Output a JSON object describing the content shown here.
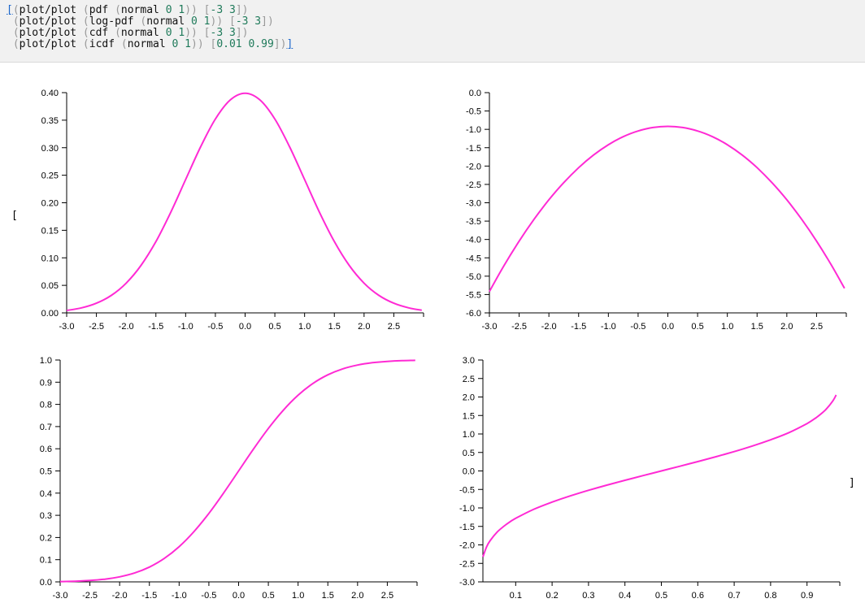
{
  "code": {
    "lines": [
      [
        {
          "t": "[",
          "c": "tok-bracket-link",
          "name": "open-bracket-link",
          "interactable": true
        },
        {
          "t": "(",
          "c": "tok-paren"
        },
        {
          "t": "plot/plot",
          "c": "tok-fn"
        },
        {
          "t": " (",
          "c": "tok-paren"
        },
        {
          "t": "pdf",
          "c": "tok-fn"
        },
        {
          "t": " (",
          "c": "tok-paren"
        },
        {
          "t": "normal",
          "c": "tok-fn"
        },
        {
          "t": " 0 1",
          "c": "tok-num"
        },
        {
          "t": ")) [",
          "c": "tok-paren"
        },
        {
          "t": "-3 3",
          "c": "tok-num"
        },
        {
          "t": "])",
          "c": "tok-paren"
        }
      ],
      [
        {
          "t": " (",
          "c": "tok-paren"
        },
        {
          "t": "plot/plot",
          "c": "tok-fn"
        },
        {
          "t": " (",
          "c": "tok-paren"
        },
        {
          "t": "log-pdf",
          "c": "tok-fn"
        },
        {
          "t": " (",
          "c": "tok-paren"
        },
        {
          "t": "normal",
          "c": "tok-fn"
        },
        {
          "t": " 0 1",
          "c": "tok-num"
        },
        {
          "t": ")) [",
          "c": "tok-paren"
        },
        {
          "t": "-3 3",
          "c": "tok-num"
        },
        {
          "t": "])",
          "c": "tok-paren"
        }
      ],
      [
        {
          "t": " (",
          "c": "tok-paren"
        },
        {
          "t": "plot/plot",
          "c": "tok-fn"
        },
        {
          "t": " (",
          "c": "tok-paren"
        },
        {
          "t": "cdf",
          "c": "tok-fn"
        },
        {
          "t": " (",
          "c": "tok-paren"
        },
        {
          "t": "normal",
          "c": "tok-fn"
        },
        {
          "t": " 0 1",
          "c": "tok-num"
        },
        {
          "t": ")) [",
          "c": "tok-paren"
        },
        {
          "t": "-3 3",
          "c": "tok-num"
        },
        {
          "t": "])",
          "c": "tok-paren"
        }
      ],
      [
        {
          "t": " (",
          "c": "tok-paren"
        },
        {
          "t": "plot/plot",
          "c": "tok-fn"
        },
        {
          "t": " (",
          "c": "tok-paren"
        },
        {
          "t": "icdf",
          "c": "tok-fn"
        },
        {
          "t": " (",
          "c": "tok-paren"
        },
        {
          "t": "normal",
          "c": "tok-fn"
        },
        {
          "t": " 0 1",
          "c": "tok-num"
        },
        {
          "t": ")) [",
          "c": "tok-paren"
        },
        {
          "t": "0.01 0.99",
          "c": "tok-num"
        },
        {
          "t": "])",
          "c": "tok-paren"
        },
        {
          "t": "]",
          "c": "tok-bracket-link",
          "name": "close-bracket-link",
          "interactable": true
        }
      ]
    ]
  },
  "output": {
    "open_bracket": "[",
    "close_bracket": "]"
  },
  "colors": {
    "line": "#ff2ad4",
    "axis": "#000000",
    "panel_bg": "#f1f1f1",
    "link": "#1a66cc"
  },
  "chart_data": [
    {
      "type": "line",
      "title": "",
      "xlabel": "",
      "ylabel": "",
      "xlim": [
        -3,
        3
      ],
      "ylim": [
        0,
        0.4
      ],
      "x_ticks": [
        "-3.0",
        "-2.5",
        "-2.0",
        "-1.5",
        "-1.0",
        "-0.5",
        "0.0",
        "0.5",
        "1.0",
        "1.5",
        "2.0",
        "2.5"
      ],
      "y_ticks": [
        "0.00",
        "0.05",
        "0.10",
        "0.15",
        "0.20",
        "0.25",
        "0.30",
        "0.35",
        "0.40"
      ],
      "grid": false,
      "series": [
        {
          "x": [
            -3.0,
            -2.75,
            -2.5,
            -2.25,
            -2.0,
            -1.75,
            -1.5,
            -1.25,
            -1.0,
            -0.75,
            -0.5,
            -0.25,
            0.0,
            0.25,
            0.5,
            0.75,
            1.0,
            1.25,
            1.5,
            1.75,
            2.0,
            2.25,
            2.5,
            2.75,
            2.97
          ],
          "y": [
            0.0044,
            0.0091,
            0.0175,
            0.0317,
            0.054,
            0.0863,
            0.1295,
            0.1826,
            0.242,
            0.3011,
            0.3521,
            0.3867,
            0.3989,
            0.3867,
            0.3521,
            0.3011,
            0.242,
            0.1826,
            0.1295,
            0.0863,
            0.054,
            0.0317,
            0.0175,
            0.0091,
            0.0048
          ]
        }
      ]
    },
    {
      "type": "line",
      "title": "",
      "xlabel": "",
      "ylabel": "",
      "xlim": [
        -3,
        3
      ],
      "ylim": [
        -6,
        0
      ],
      "x_ticks": [
        "-3.0",
        "-2.5",
        "-2.0",
        "-1.5",
        "-1.0",
        "-0.5",
        "0.0",
        "0.5",
        "1.0",
        "1.5",
        "2.0",
        "2.5"
      ],
      "y_ticks": [
        "0.0",
        "-0.5",
        "-1.0",
        "-1.5",
        "-2.0",
        "-2.5",
        "-3.0",
        "-3.5",
        "-4.0",
        "-4.5",
        "-5.0",
        "-5.5",
        "-6.0"
      ],
      "grid": false,
      "series": [
        {
          "x": [
            -3.0,
            -2.75,
            -2.5,
            -2.25,
            -2.0,
            -1.75,
            -1.5,
            -1.25,
            -1.0,
            -0.75,
            -0.5,
            -0.25,
            0.0,
            0.25,
            0.5,
            0.75,
            1.0,
            1.25,
            1.5,
            1.75,
            2.0,
            2.25,
            2.5,
            2.75,
            2.97
          ],
          "y": [
            -5.419,
            -4.7,
            -4.044,
            -3.45,
            -2.919,
            -2.45,
            -2.044,
            -1.7,
            -1.419,
            -1.2,
            -1.044,
            -0.95,
            -0.919,
            -0.95,
            -1.044,
            -1.2,
            -1.419,
            -1.7,
            -2.044,
            -2.45,
            -2.919,
            -3.45,
            -4.044,
            -4.7,
            -5.329
          ]
        }
      ]
    },
    {
      "type": "line",
      "title": "",
      "xlabel": "",
      "ylabel": "",
      "xlim": [
        -3,
        3
      ],
      "ylim": [
        0,
        1
      ],
      "x_ticks": [
        "-3.0",
        "-2.5",
        "-2.0",
        "-1.5",
        "-1.0",
        "-0.5",
        "0.0",
        "0.5",
        "1.0",
        "1.5",
        "2.0",
        "2.5"
      ],
      "y_ticks": [
        "0.0",
        "0.1",
        "0.2",
        "0.3",
        "0.4",
        "0.5",
        "0.6",
        "0.7",
        "0.8",
        "0.9",
        "1.0"
      ],
      "grid": false,
      "series": [
        {
          "x": [
            -3.0,
            -2.75,
            -2.5,
            -2.25,
            -2.0,
            -1.75,
            -1.5,
            -1.25,
            -1.0,
            -0.75,
            -0.5,
            -0.25,
            0.0,
            0.25,
            0.5,
            0.75,
            1.0,
            1.25,
            1.5,
            1.75,
            2.0,
            2.25,
            2.5,
            2.75,
            2.97
          ],
          "y": [
            0.0013,
            0.003,
            0.0062,
            0.0122,
            0.0228,
            0.0401,
            0.0668,
            0.1056,
            0.1587,
            0.2266,
            0.3085,
            0.4013,
            0.5,
            0.5987,
            0.6915,
            0.7734,
            0.8413,
            0.8944,
            0.9332,
            0.9599,
            0.9772,
            0.9878,
            0.9938,
            0.997,
            0.9985
          ]
        }
      ]
    },
    {
      "type": "line",
      "title": "",
      "xlabel": "",
      "ylabel": "",
      "xlim": [
        0.01,
        0.99
      ],
      "ylim": [
        -3,
        3
      ],
      "x_ticks": [
        "0.1",
        "0.2",
        "0.3",
        "0.4",
        "0.5",
        "0.6",
        "0.7",
        "0.8",
        "0.9"
      ],
      "y_ticks": [
        "3.0",
        "2.5",
        "2.0",
        "1.5",
        "1.0",
        "0.5",
        "0.0",
        "-0.5",
        "-1.0",
        "-1.5",
        "-2.0",
        "-2.5",
        "-3.0"
      ],
      "grid": false,
      "series": [
        {
          "x": [
            0.01,
            0.02,
            0.03,
            0.05,
            0.075,
            0.1,
            0.15,
            0.2,
            0.25,
            0.3,
            0.35,
            0.4,
            0.45,
            0.5,
            0.55,
            0.6,
            0.65,
            0.7,
            0.75,
            0.8,
            0.85,
            0.9,
            0.925,
            0.95,
            0.97,
            0.98
          ],
          "y": [
            -2.326,
            -2.054,
            -1.881,
            -1.645,
            -1.44,
            -1.282,
            -1.036,
            -0.842,
            -0.674,
            -0.524,
            -0.385,
            -0.253,
            -0.126,
            0.0,
            0.126,
            0.253,
            0.385,
            0.524,
            0.674,
            0.842,
            1.036,
            1.282,
            1.44,
            1.645,
            1.881,
            2.054
          ]
        }
      ]
    }
  ]
}
